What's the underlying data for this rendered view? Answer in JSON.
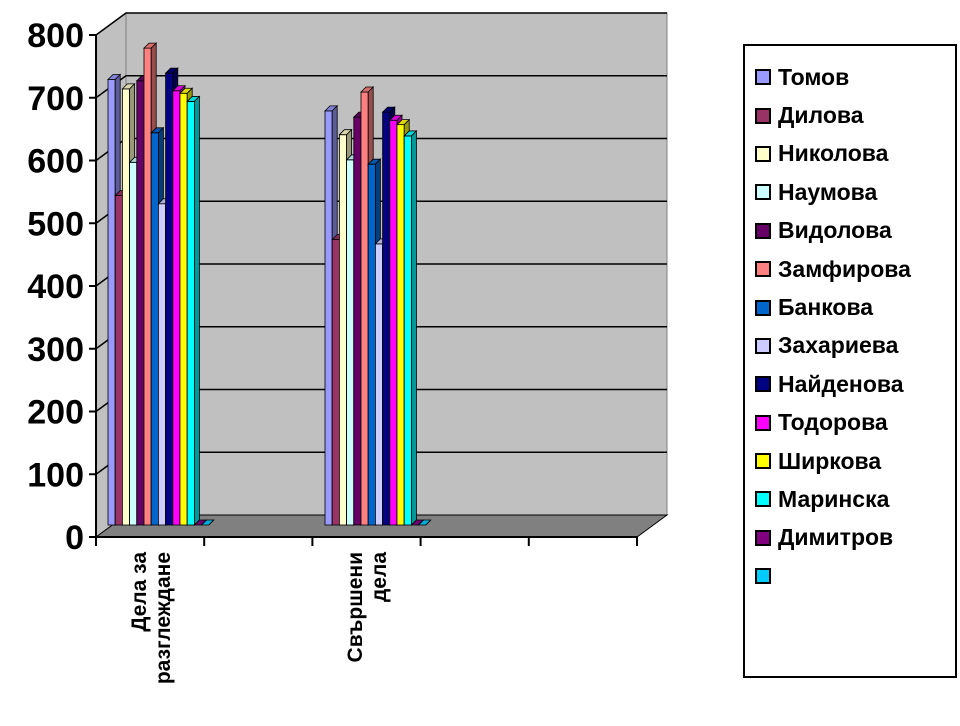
{
  "chart_data": {
    "type": "bar",
    "categories": [
      "Дела за разглеждане",
      "Свършени дела"
    ],
    "category_lines": [
      [
        "Дела за",
        "разглеждане"
      ],
      [
        "Свършени",
        "дела"
      ]
    ],
    "ylim": [
      0,
      800
    ],
    "yticks": [
      0,
      100,
      200,
      300,
      400,
      500,
      600,
      700,
      800
    ],
    "grid": true,
    "legend_position": "right",
    "series": [
      {
        "name": "Томов",
        "color": "#9999FF",
        "values": [
          710,
          660
        ]
      },
      {
        "name": "Дилова",
        "color": "#993366",
        "values": [
          525,
          455
        ]
      },
      {
        "name": "Николова",
        "color": "#FFFFCC",
        "values": [
          695,
          622
        ]
      },
      {
        "name": "Наумова",
        "color": "#CCFFFF",
        "values": [
          578,
          582
        ]
      },
      {
        "name": "Видолова",
        "color": "#660066",
        "values": [
          708,
          650
        ]
      },
      {
        "name": "Замфирова",
        "color": "#FF8080",
        "values": [
          760,
          690
        ]
      },
      {
        "name": "Банкова",
        "color": "#0066CC",
        "values": [
          625,
          575
        ]
      },
      {
        "name": "Захариева",
        "color": "#CCCCFF",
        "values": [
          512,
          448
        ]
      },
      {
        "name": "Найденова",
        "color": "#000080",
        "values": [
          720,
          658
        ]
      },
      {
        "name": "Тодорова",
        "color": "#FF00FF",
        "values": [
          692,
          645
        ]
      },
      {
        "name": "Ширкова",
        "color": "#FFFF00",
        "values": [
          688,
          638
        ]
      },
      {
        "name": "Маринска",
        "color": "#00FFFF",
        "values": [
          675,
          620
        ]
      },
      {
        "name": "Димитров",
        "color": "#800080",
        "values": [
          0,
          0
        ]
      },
      {
        "name": "",
        "color": "#00CCFF",
        "values": [
          0,
          0
        ]
      }
    ]
  }
}
